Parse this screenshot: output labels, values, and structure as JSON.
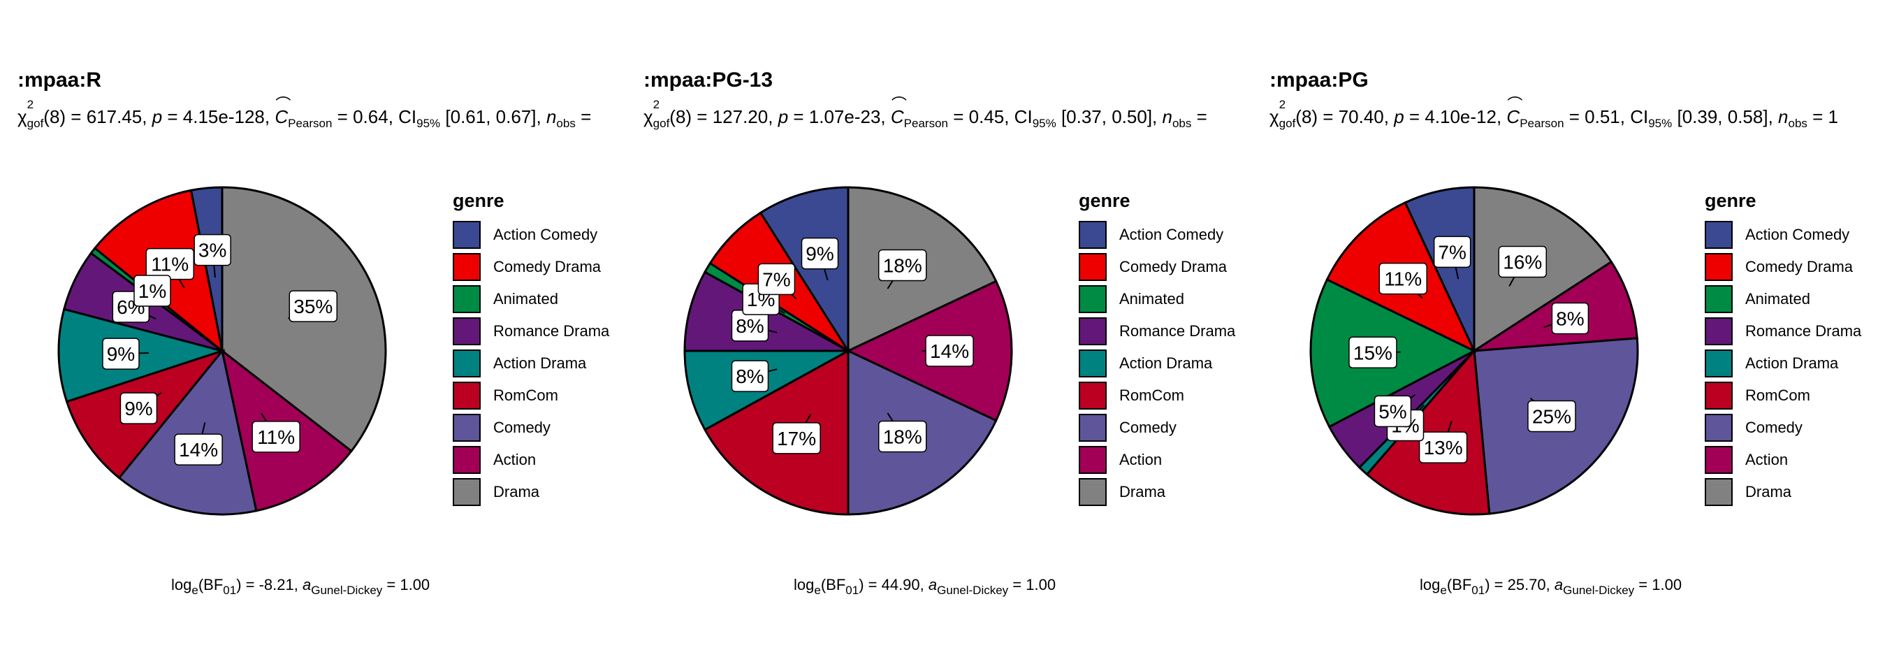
{
  "panels": [
    {
      "title": ":mpaa:R",
      "subtitle": {
        "stat": "(8) = 617.45, ",
        "p": " = 4.15e-128, ",
        "c": " = 0.64, CI",
        "ci": " [0.61, 0.67], ",
        "nobs": " ="
      },
      "caption": {
        "bf": " = -8.21, ",
        "a": " = 1.00"
      }
    },
    {
      "title": ":mpaa:PG-13",
      "subtitle": {
        "stat": "(8) = 127.20, ",
        "p": " = 1.07e-23, ",
        "c": " = 0.45, CI",
        "ci": " [0.37, 0.50], ",
        "nobs": " ="
      },
      "caption": {
        "bf": " = 44.90, ",
        "a": " = 1.00"
      }
    },
    {
      "title": ":mpaa:PG",
      "subtitle": {
        "stat": "(8) = 70.40, ",
        "p": " = 4.10e-12, ",
        "c": " = 0.51, CI",
        "ci": " [0.39, 0.58], ",
        "nobs": " = 1"
      },
      "caption": {
        "bf": " = 25.70, ",
        "a": " = 1.00"
      }
    }
  ],
  "legend": {
    "title": "genre",
    "items": [
      {
        "label": "Action Comedy",
        "color": "#3B4992"
      },
      {
        "label": "Comedy Drama",
        "color": "#EE0000"
      },
      {
        "label": "Animated",
        "color": "#008B45"
      },
      {
        "label": "Romance Drama",
        "color": "#631879"
      },
      {
        "label": "Action Drama",
        "color": "#008280"
      },
      {
        "label": "RomCom",
        "color": "#BB0021"
      },
      {
        "label": "Comedy",
        "color": "#5F559B"
      },
      {
        "label": "Action",
        "color": "#A20056"
      },
      {
        "label": "Drama",
        "color": "#808180"
      }
    ]
  },
  "chart_data": [
    {
      "type": "pie",
      "title": ":mpaa:R",
      "categories": [
        "Action Comedy",
        "Comedy Drama",
        "Animated",
        "Romance Drama",
        "Action Drama",
        "RomCom",
        "Comedy",
        "Action",
        "Drama"
      ],
      "values": [
        3,
        11,
        0.6,
        6,
        9,
        9,
        14,
        11,
        35
      ],
      "labels": [
        "3%",
        "11%",
        "",
        "6%",
        "9%",
        "9%",
        "14%",
        "11%",
        "35%"
      ],
      "extra_labels": [
        "1%"
      ]
    },
    {
      "type": "pie",
      "title": ":mpaa:PG-13",
      "categories": [
        "Action Comedy",
        "Comedy Drama",
        "Animated",
        "Romance Drama",
        "Action Drama",
        "RomCom",
        "Comedy",
        "Action",
        "Drama"
      ],
      "values": [
        9,
        7,
        1,
        8,
        8,
        17,
        18,
        14,
        18
      ],
      "labels": [
        "9%",
        "7%",
        "1%",
        "8%",
        "8%",
        "17%",
        "18%",
        "14%",
        "18%"
      ]
    },
    {
      "type": "pie",
      "title": ":mpaa:PG",
      "categories": [
        "Action Comedy",
        "Comedy Drama",
        "Animated",
        "Romance Drama",
        "Action Drama",
        "RomCom",
        "Comedy",
        "Action",
        "Drama"
      ],
      "values": [
        7,
        11,
        15,
        5,
        1,
        13,
        25,
        8,
        16
      ],
      "labels": [
        "7%",
        "11%",
        "15%",
        "5%",
        "1%",
        "13%",
        "25%",
        "8%",
        "16%"
      ]
    }
  ]
}
